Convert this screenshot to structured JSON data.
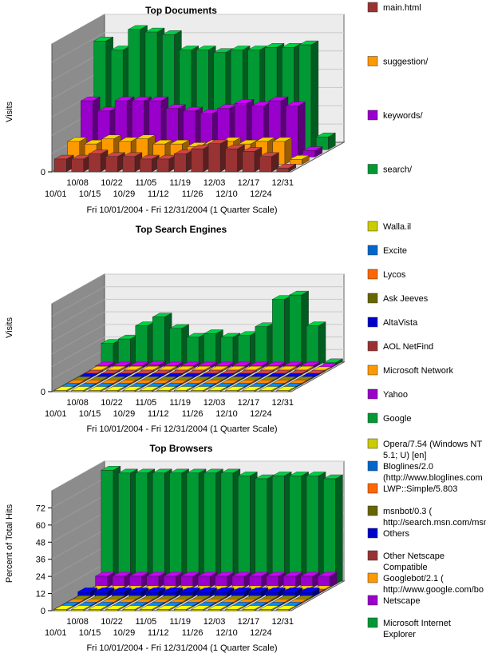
{
  "chart_data": [
    {
      "type": "bar",
      "title": "Top Documents",
      "ylabel": "Visits",
      "xlabel": "Fri 10/01/2004 - Fri 12/31/2004 (1 Quarter Scale)",
      "categories": [
        "10/01",
        "10/08",
        "10/15",
        "10/22",
        "10/29",
        "11/05",
        "11/12",
        "11/19",
        "11/26",
        "12/03",
        "12/10",
        "12/17",
        "12/24",
        "12/31"
      ],
      "yticks": [
        "0"
      ],
      "ylim": [
        0,
        100
      ],
      "series": [
        {
          "name": "main.html",
          "color": "#993333",
          "values": [
            10,
            10,
            14,
            12,
            12,
            10,
            10,
            14,
            18,
            22,
            18,
            16,
            12,
            3
          ]
        },
        {
          "name": "suggestion/",
          "color": "#ff9900",
          "values": [
            18,
            16,
            20,
            18,
            20,
            16,
            16,
            14,
            16,
            18,
            16,
            18,
            18,
            4
          ]
        },
        {
          "name": "keywords/",
          "color": "#9900cc",
          "values": [
            44,
            36,
            44,
            44,
            44,
            38,
            36,
            34,
            38,
            42,
            40,
            44,
            40,
            5
          ]
        },
        {
          "name": "search/",
          "color": "#009933",
          "values": [
            85,
            78,
            94,
            92,
            90,
            78,
            78,
            76,
            78,
            78,
            80,
            80,
            82,
            10
          ]
        }
      ]
    },
    {
      "type": "bar",
      "title": "Top Search Engines",
      "ylabel": "Visits",
      "xlabel": "Fri 10/01/2004 - Fri 12/31/2004 (1 Quarter Scale)",
      "categories": [
        "10/01",
        "10/08",
        "10/15",
        "10/22",
        "10/29",
        "11/05",
        "11/12",
        "11/19",
        "11/26",
        "12/03",
        "12/10",
        "12/17",
        "12/24",
        "12/31"
      ],
      "yticks": [
        "0"
      ],
      "ylim": [
        0,
        100
      ],
      "series": [
        {
          "name": "Walla.il",
          "color": "#cccc00",
          "values": [
            1,
            1,
            1,
            1,
            1,
            1,
            1,
            1,
            1,
            1,
            1,
            1,
            1,
            0
          ]
        },
        {
          "name": "Excite",
          "color": "#0066cc",
          "values": [
            1,
            1,
            1,
            1,
            1,
            1,
            1,
            1,
            1,
            1,
            1,
            1,
            1,
            0
          ]
        },
        {
          "name": "Lycos",
          "color": "#ff6600",
          "values": [
            1,
            1,
            1,
            1,
            1,
            1,
            1,
            1,
            1,
            1,
            1,
            1,
            1,
            0
          ]
        },
        {
          "name": "Ask Jeeves",
          "color": "#666600",
          "values": [
            1,
            1,
            1,
            1,
            1,
            1,
            1,
            1,
            1,
            1,
            1,
            1,
            1,
            0
          ]
        },
        {
          "name": "AltaVista",
          "color": "#0000cc",
          "values": [
            1,
            1,
            1,
            1,
            1,
            1,
            1,
            1,
            1,
            1,
            1,
            1,
            1,
            0
          ]
        },
        {
          "name": "AOL NetFind",
          "color": "#993333",
          "values": [
            1,
            1,
            1,
            1,
            1,
            1,
            1,
            1,
            1,
            1,
            1,
            1,
            1,
            0
          ]
        },
        {
          "name": "Microsoft Network",
          "color": "#ff9900",
          "values": [
            2,
            2,
            2,
            2,
            2,
            2,
            2,
            2,
            2,
            2,
            2,
            2,
            2,
            0
          ]
        },
        {
          "name": "Yahoo",
          "color": "#9900cc",
          "values": [
            3,
            3,
            3,
            4,
            3,
            3,
            3,
            3,
            3,
            3,
            3,
            3,
            3,
            1
          ]
        },
        {
          "name": "Google",
          "color": "#009933",
          "values": [
            25,
            30,
            45,
            55,
            42,
            32,
            36,
            32,
            34,
            44,
            75,
            80,
            45,
            3
          ]
        }
      ]
    },
    {
      "type": "bar",
      "title": "Top Browsers",
      "ylabel": "Percent of Total Hits",
      "xlabel": "Fri 10/01/2004 - Fri 12/31/2004 (1 Quarter Scale)",
      "categories": [
        "10/01",
        "10/08",
        "10/15",
        "10/22",
        "10/29",
        "11/05",
        "11/12",
        "11/19",
        "11/26",
        "12/03",
        "12/10",
        "12/17",
        "12/24",
        "12/31"
      ],
      "yticks": [
        "0",
        "12",
        "24",
        "36",
        "48",
        "60",
        "72"
      ],
      "ylim": [
        0,
        84
      ],
      "series": [
        {
          "name": "Opera/7.54 (Windows NT 5.1; U)  [en]",
          "color": "#cccc00",
          "values": [
            0.5,
            0.5,
            0.5,
            0.5,
            0.5,
            0.5,
            0.5,
            0.5,
            0.5,
            0.5,
            0.5,
            0.5,
            0.5,
            0.5
          ]
        },
        {
          "name": "Bloglines/2.0 (http://www.bloglines.com",
          "color": "#0066cc",
          "values": [
            0.5,
            0.5,
            0.5,
            0.5,
            0.5,
            0.5,
            0.5,
            0.5,
            0.5,
            0.5,
            0.5,
            0.5,
            0.5,
            0.5
          ]
        },
        {
          "name": "LWP::Simple/5.803",
          "color": "#ff6600",
          "values": [
            0.5,
            0.5,
            0.5,
            0.5,
            0.5,
            0.5,
            0.5,
            0.5,
            0.5,
            0.5,
            0.5,
            0.5,
            0.5,
            0.5
          ]
        },
        {
          "name": "msnbot/0.3 (  http://search.msn.com/msn",
          "color": "#666600",
          "values": [
            0.5,
            0.5,
            0.5,
            0.5,
            0.5,
            0.5,
            0.5,
            0.5,
            0.5,
            0.5,
            0.5,
            0.5,
            0.5,
            0.5
          ]
        },
        {
          "name": "Others",
          "color": "#0000cc",
          "values": [
            4,
            4,
            4,
            4,
            4,
            4,
            4,
            4,
            4,
            4,
            4,
            4,
            4,
            4
          ]
        },
        {
          "name": "Other Netscape Compatible",
          "color": "#993333",
          "values": [
            0.5,
            0.5,
            0.5,
            0.5,
            0.5,
            0.5,
            0.5,
            0.5,
            0.5,
            0.5,
            0.5,
            0.5,
            0.5,
            0.5
          ]
        },
        {
          "name": "Googlebot/2.1 (  http://www.google.com/bo",
          "color": "#ff9900",
          "values": [
            0.5,
            0.5,
            0.5,
            0.5,
            0.5,
            0.5,
            0.5,
            0.5,
            0.5,
            0.5,
            0.5,
            0.5,
            0.5,
            0.5
          ]
        },
        {
          "name": "Netscape",
          "color": "#9900cc",
          "values": [
            8,
            8,
            8,
            8,
            8,
            8,
            8,
            8,
            8,
            8,
            8,
            8,
            8,
            8
          ]
        },
        {
          "name": "Microsoft Internet Explorer",
          "color": "#009933",
          "values": [
            80,
            78,
            78,
            78,
            78,
            78,
            78,
            78,
            76,
            74,
            76,
            76,
            76,
            74
          ]
        }
      ]
    }
  ]
}
